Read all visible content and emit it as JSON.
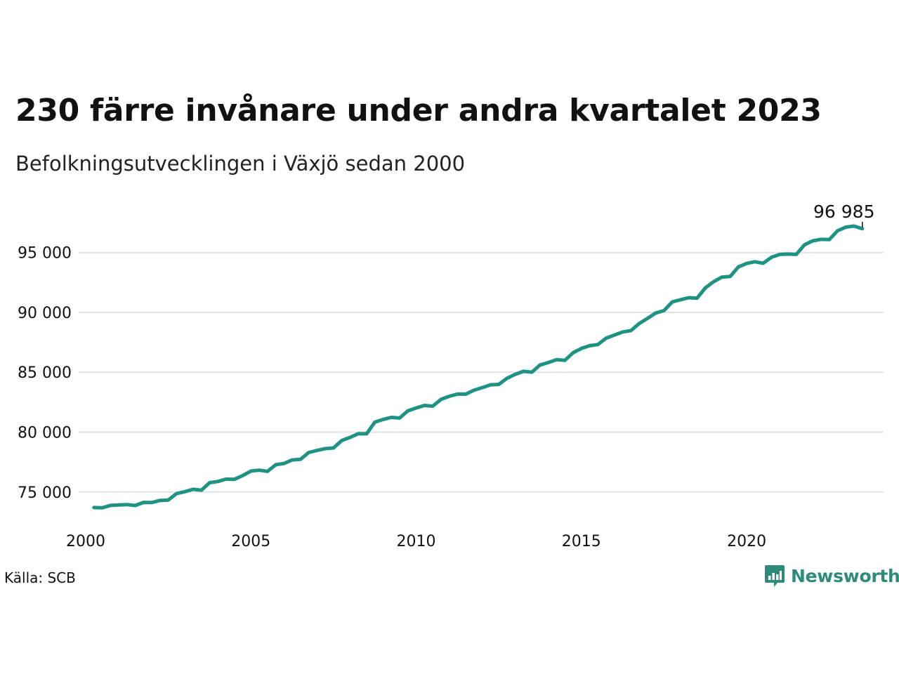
{
  "title": "230 färre invånare under andra kvartalet 2023",
  "subtitle": "Befolkningsutvecklingen i Växjö sedan 2000",
  "source": "Källa: SCB",
  "brand": {
    "name": "Newsworthy",
    "color": "#2e8b7a",
    "icon": "newsworthy-logo-icon"
  },
  "colors": {
    "line": "#1f9383",
    "grid": "#e2e2e2"
  },
  "chart_data": {
    "type": "line",
    "title": "230 färre invånare under andra kvartalet 2023",
    "subtitle": "Befolkningsutvecklingen i Växjö sedan 2000",
    "grid": true,
    "xlim": [
      2000,
      2024.1
    ],
    "ylim": [
      72700,
      98500
    ],
    "y_ticks": [
      75000,
      80000,
      85000,
      90000,
      95000
    ],
    "y_tick_labels": [
      "75 000",
      "80 000",
      "85 000",
      "90 000",
      "95 000"
    ],
    "x_ticks": [
      2000,
      2005,
      2010,
      2015,
      2020
    ],
    "x_tick_labels": [
      "2000",
      "2005",
      "2010",
      "2015",
      "2020"
    ],
    "end_label": "96 985",
    "series": [
      {
        "x": [
          2000.25,
          2000.5,
          2000.75,
          2001.0,
          2001.25,
          2001.5,
          2001.75,
          2002.0,
          2002.25,
          2002.5,
          2002.75,
          2003.0,
          2003.25,
          2003.5,
          2003.75,
          2004.0,
          2004.25,
          2004.5,
          2004.75,
          2005.0,
          2005.25,
          2005.5,
          2005.75,
          2006.0,
          2006.25,
          2006.5,
          2006.75,
          2007.0,
          2007.25,
          2007.5,
          2007.75,
          2008.0,
          2008.25,
          2008.5,
          2008.75,
          2009.0,
          2009.25,
          2009.5,
          2009.75,
          2010.0,
          2010.25,
          2010.5,
          2010.75,
          2011.0,
          2011.25,
          2011.5,
          2011.75,
          2012.0,
          2012.25,
          2012.5,
          2012.75,
          2013.0,
          2013.25,
          2013.5,
          2013.75,
          2014.0,
          2014.25,
          2014.5,
          2014.75,
          2015.0,
          2015.25,
          2015.5,
          2015.75,
          2016.0,
          2016.25,
          2016.5,
          2016.75,
          2017.0,
          2017.25,
          2017.5,
          2017.75,
          2018.0,
          2018.25,
          2018.5,
          2018.75,
          2019.0,
          2019.25,
          2019.5,
          2019.75,
          2020.0,
          2020.25,
          2020.5,
          2020.75,
          2021.0,
          2021.25,
          2021.5,
          2021.75,
          2022.0,
          2022.25,
          2022.5,
          2022.75,
          2023.0,
          2023.25,
          2023.5
        ],
        "values": [
          73700,
          73680,
          73880,
          73920,
          73950,
          73870,
          74130,
          74120,
          74300,
          74330,
          74870,
          75030,
          75230,
          75150,
          75780,
          75880,
          76080,
          76060,
          76370,
          76750,
          76820,
          76720,
          77280,
          77380,
          77680,
          77730,
          78300,
          78470,
          78620,
          78680,
          79300,
          79560,
          79870,
          79860,
          80840,
          81060,
          81230,
          81180,
          81780,
          82020,
          82230,
          82170,
          82730,
          82990,
          83180,
          83170,
          83500,
          83720,
          83950,
          83990,
          84500,
          84830,
          85080,
          85010,
          85610,
          85810,
          86060,
          85990,
          86630,
          86990,
          87220,
          87320,
          87850,
          88110,
          88370,
          88480,
          89080,
          89500,
          89950,
          90150,
          90880,
          91060,
          91230,
          91190,
          92050,
          92560,
          92950,
          93000,
          93800,
          94090,
          94230,
          94100,
          94600,
          94840,
          94870,
          94840,
          95640,
          95980,
          96100,
          96080,
          96820,
          97120,
          97210,
          96985
        ]
      }
    ]
  }
}
